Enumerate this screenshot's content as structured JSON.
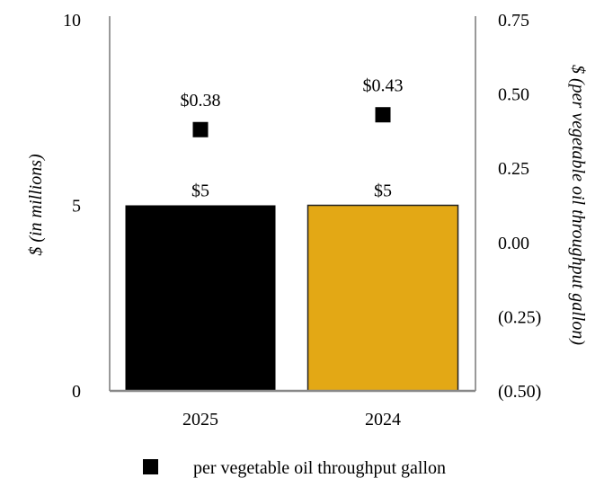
{
  "chart_data": {
    "type": "bar",
    "categories": [
      "2025",
      "2024"
    ],
    "series": [
      {
        "values": [
          5,
          5
        ],
        "axis": "left",
        "colors": [
          "#000000",
          "#E3A815"
        ],
        "data_labels": [
          "$5",
          "$5"
        ]
      },
      {
        "name": "per vegetable oil throughput gallon",
        "type": "scatter",
        "marker": "square",
        "values": [
          0.38,
          0.43
        ],
        "axis": "right",
        "color": "#000000",
        "data_labels": [
          "$0.38",
          "$0.43"
        ]
      }
    ],
    "ylabel": "$ (in millions)",
    "ylabel_right": "$ (per vegetable oil throughput gallon)",
    "ylim": [
      0,
      10
    ],
    "ylim_right": [
      -0.5,
      0.75
    ],
    "yticks": [
      {
        "v": 0,
        "label": "0"
      },
      {
        "v": 5,
        "label": "5"
      },
      {
        "v": 10,
        "label": "10"
      }
    ],
    "yticks_right": [
      {
        "v": 0.75,
        "label": "0.75"
      },
      {
        "v": 0.5,
        "label": "0.50"
      },
      {
        "v": 0.25,
        "label": "0.25"
      },
      {
        "v": 0,
        "label": "0.00"
      },
      {
        "v": -0.25,
        "label": "(0.25)"
      },
      {
        "v": -0.5,
        "label": "(0.50)"
      }
    ],
    "grid": false,
    "legend_position": "bottom"
  }
}
